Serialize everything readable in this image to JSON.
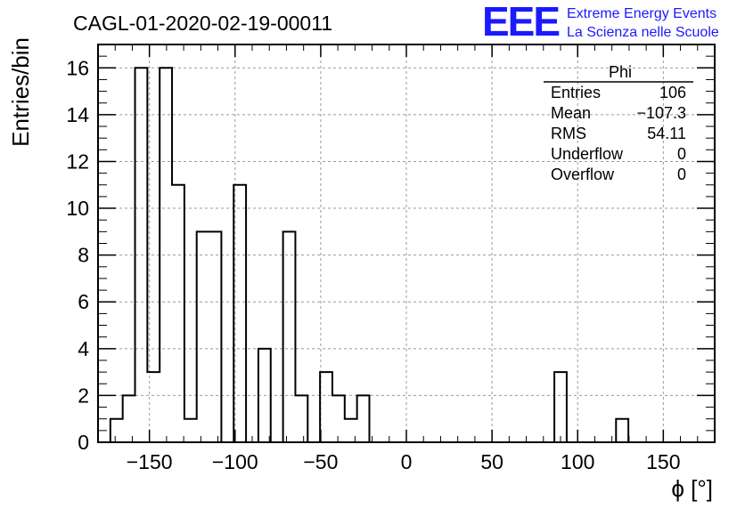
{
  "chart_data": {
    "type": "histogram",
    "title": "CAGL-01-2020-02-19-00011",
    "xlabel": "ϕ [°]",
    "ylabel": "Entries/bin",
    "xlim": [
      -180,
      180
    ],
    "ylim": [
      0,
      17
    ],
    "grid": true,
    "bin_width": 7.2,
    "x_ticks": [
      -150,
      -100,
      -50,
      0,
      50,
      100,
      150
    ],
    "x_tick_labels": [
      "−150",
      "−100",
      "−50",
      "0",
      "50",
      "100",
      "150"
    ],
    "y_ticks": [
      0,
      2,
      4,
      6,
      8,
      10,
      12,
      14,
      16
    ],
    "y_tick_labels": [
      "0",
      "2",
      "4",
      "6",
      "8",
      "10",
      "12",
      "14",
      "16"
    ],
    "bins": [
      {
        "x": -172.8,
        "value": 1
      },
      {
        "x": -165.6,
        "value": 2
      },
      {
        "x": -158.4,
        "value": 16
      },
      {
        "x": -151.2,
        "value": 3
      },
      {
        "x": -144.0,
        "value": 16
      },
      {
        "x": -136.8,
        "value": 11
      },
      {
        "x": -129.6,
        "value": 1
      },
      {
        "x": -122.4,
        "value": 9
      },
      {
        "x": -115.2,
        "value": 9
      },
      {
        "x": -108.0,
        "value": 0
      },
      {
        "x": -100.8,
        "value": 11
      },
      {
        "x": -93.6,
        "value": 0
      },
      {
        "x": -86.4,
        "value": 4
      },
      {
        "x": -79.2,
        "value": 0
      },
      {
        "x": -72.0,
        "value": 9
      },
      {
        "x": -64.8,
        "value": 2
      },
      {
        "x": -57.6,
        "value": 0
      },
      {
        "x": -50.4,
        "value": 3
      },
      {
        "x": -43.2,
        "value": 2
      },
      {
        "x": -36.0,
        "value": 1
      },
      {
        "x": -28.8,
        "value": 2
      },
      {
        "x": 86.4,
        "value": 3
      },
      {
        "x": 122.4,
        "value": 1
      }
    ]
  },
  "stats_box": {
    "title": "Phi",
    "rows": [
      {
        "label": "Entries",
        "value": "106"
      },
      {
        "label": "Mean",
        "value": "−107.3"
      },
      {
        "label": "RMS",
        "value": "54.11"
      },
      {
        "label": "Underflow",
        "value": "0"
      },
      {
        "label": "Overflow",
        "value": "0"
      }
    ]
  },
  "logo": {
    "mark": "EEE",
    "line1": "Extreme Energy Events",
    "line2": "La Scienza nelle Scuole",
    "color": "#1a1aff"
  }
}
